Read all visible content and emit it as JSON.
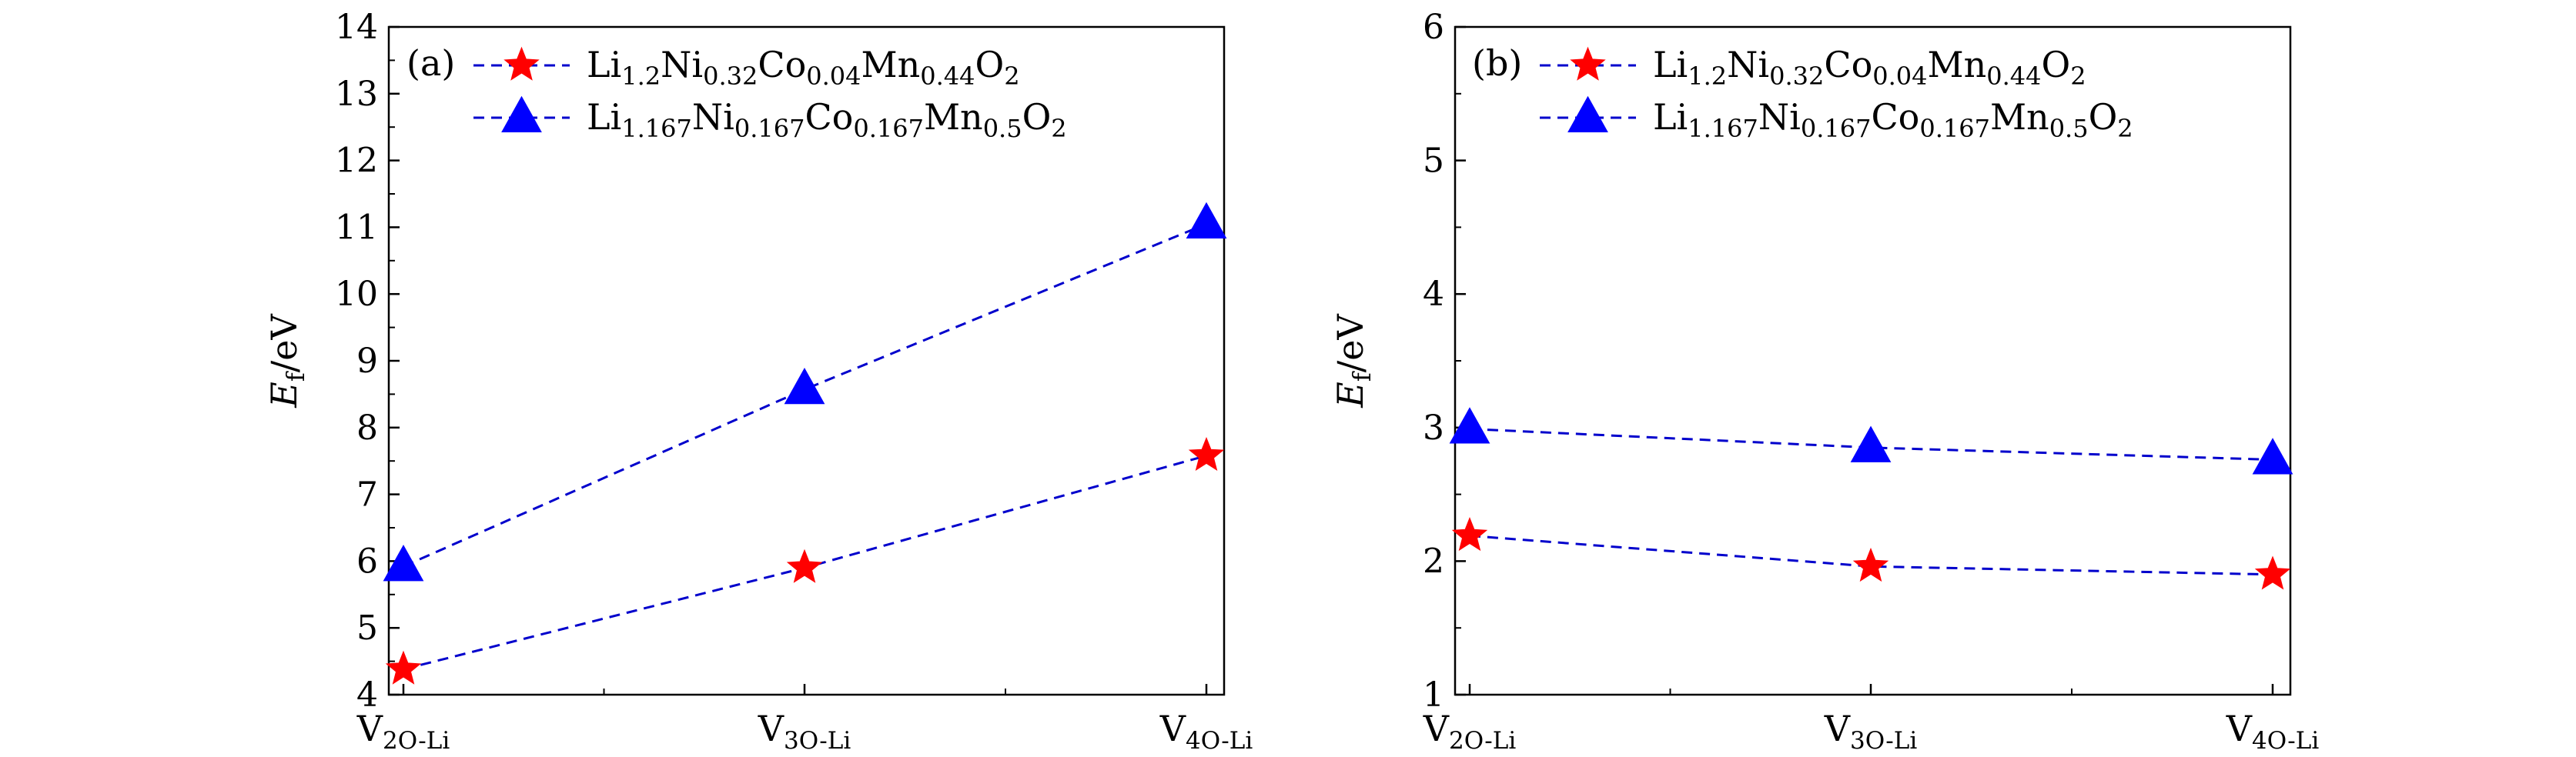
{
  "chart_data": [
    {
      "type": "line",
      "panel": "(a)",
      "categories_main": [
        "V",
        "V",
        "V"
      ],
      "categories_sub": [
        "2O-Li",
        "3O-Li",
        "4O-Li"
      ],
      "ylabel_main": "E",
      "ylabel_sub": "f",
      "ylabel_unit": "/eV",
      "ylim": [
        4,
        14
      ],
      "yticks": [
        "4",
        "5",
        "6",
        "7",
        "8",
        "9",
        "10",
        "11",
        "12",
        "13",
        "14"
      ],
      "series": [
        {
          "name_parts": [
            "Li",
            "1.2",
            "Ni",
            "0.32",
            "Co",
            "0.04",
            "Mn",
            "0.44",
            "O",
            "2"
          ],
          "marker": "star",
          "color": "#ff0000",
          "line_color": "#0000cc",
          "values": [
            4.38,
            5.9,
            7.58
          ]
        },
        {
          "name_parts": [
            "Li",
            "1.167",
            "Ni",
            "0.167",
            "Co",
            "0.167",
            "Mn",
            "0.5",
            "O",
            "2"
          ],
          "marker": "triangle",
          "color": "#0000ff",
          "line_color": "#0000cc",
          "values": [
            5.92,
            8.57,
            11.05
          ]
        }
      ]
    },
    {
      "type": "line",
      "panel": "(b)",
      "categories_main": [
        "V",
        "V",
        "V"
      ],
      "categories_sub": [
        "2O-Li",
        "3O-Li",
        "4O-Li"
      ],
      "ylabel_main": "E",
      "ylabel_sub": "f",
      "ylabel_unit": "/eV",
      "ylim": [
        1,
        6
      ],
      "yticks": [
        "1",
        "2",
        "3",
        "4",
        "5",
        "6"
      ],
      "series": [
        {
          "name_parts": [
            "Li",
            "1.2",
            "Ni",
            "0.32",
            "Co",
            "0.04",
            "Mn",
            "0.44",
            "O",
            "2"
          ],
          "marker": "star",
          "color": "#ff0000",
          "line_color": "#0000cc",
          "values": [
            2.19,
            1.96,
            1.9
          ]
        },
        {
          "name_parts": [
            "Li",
            "1.167",
            "Ni",
            "0.167",
            "Co",
            "0.167",
            "Mn",
            "0.5",
            "O",
            "2"
          ],
          "marker": "triangle",
          "color": "#0000ff",
          "line_color": "#0000cc",
          "values": [
            2.99,
            2.85,
            2.76
          ]
        }
      ]
    }
  ]
}
